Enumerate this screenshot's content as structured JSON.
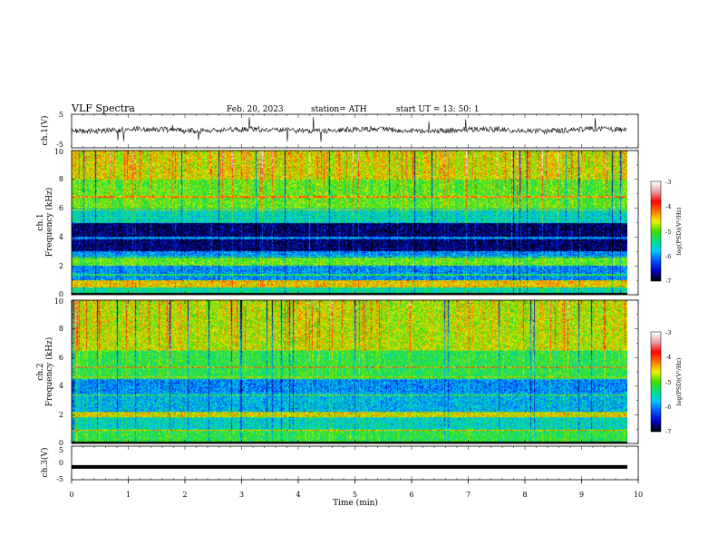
{
  "header": {
    "title": "VLF  Spectra",
    "date": "Feb. 20, 2023",
    "station": "station= ATH",
    "start": "start  UT  =    13: 50: 1"
  },
  "chart_data": [
    {
      "type": "line",
      "panel": "ch1-waveform",
      "ylabel": "ch.1(V)",
      "ylim": [
        -5,
        5
      ],
      "yticks": [
        "5",
        "-5"
      ],
      "xlim": [
        0,
        10
      ],
      "description_values": {
        "baseline_v": 0.3,
        "noise_amplitude_v": 1.0
      }
    },
    {
      "type": "heatmap",
      "panel": "ch1-spectrogram",
      "ylabel": "ch.1\nFrequency (kHz)",
      "ylim": [
        0,
        10
      ],
      "yticks": [
        "0",
        "2",
        "4",
        "6",
        "8",
        "10"
      ],
      "xlim": [
        0,
        9.8
      ],
      "colorbar": {
        "label": "log(PSD)(V²/Hz)",
        "range": [
          -7,
          -3
        ],
        "ticks": [
          "-3",
          "-4",
          "-5",
          "-6",
          "-7"
        ]
      },
      "bands_khz_logpsd": [
        [
          0,
          0.15,
          -7
        ],
        [
          0.15,
          0.5,
          -5.5
        ],
        [
          0.5,
          1.0,
          -4.5
        ],
        [
          1.0,
          2.0,
          -6.0
        ],
        [
          2.0,
          2.6,
          -5.0
        ],
        [
          2.6,
          3.0,
          -6.0
        ],
        [
          3.0,
          5.0,
          -6.8
        ],
        [
          5.0,
          6.0,
          -5.6
        ],
        [
          6.0,
          8.0,
          -5.0
        ],
        [
          8.0,
          10.0,
          -4.6
        ]
      ]
    },
    {
      "type": "heatmap",
      "panel": "ch2-spectrogram",
      "ylabel": "ch.2\nFrequency (kHz)",
      "ylim": [
        0,
        10
      ],
      "yticks": [
        "0",
        "2",
        "4",
        "6",
        "8",
        "10"
      ],
      "xlim": [
        0,
        9.8
      ],
      "colorbar": {
        "label": "log(PSD)(V²/Hz)",
        "range": [
          -7,
          -3
        ],
        "ticks": [
          "-3",
          "-4",
          "-5",
          "-6",
          "-7"
        ]
      },
      "bands_khz_logpsd": [
        [
          0,
          0.15,
          -7
        ],
        [
          0.15,
          1.0,
          -5.2
        ],
        [
          1.0,
          1.8,
          -5.6
        ],
        [
          1.8,
          2.2,
          -4.6
        ],
        [
          2.2,
          3.5,
          -5.8
        ],
        [
          3.5,
          4.5,
          -6.0
        ],
        [
          4.5,
          6.5,
          -5.2
        ],
        [
          6.5,
          10.0,
          -4.7
        ]
      ]
    },
    {
      "type": "line",
      "panel": "ch3-waveform",
      "ylabel": "ch.3(V)",
      "ylim": [
        -5,
        5
      ],
      "yticks": [
        "5",
        "0",
        "-5"
      ],
      "xlim": [
        0,
        10
      ],
      "xlabel": "Time  (min)",
      "xticks": [
        "0",
        "1",
        "2",
        "3",
        "4",
        "5",
        "6",
        "7",
        "8",
        "9",
        "10"
      ],
      "description_values": {
        "baseline_v": -1.2
      }
    }
  ],
  "colors": {
    "colormap": [
      "#000000",
      "#0000c8",
      "#0050ff",
      "#00c8ff",
      "#00e080",
      "#40e000",
      "#f0f000",
      "#ff7800",
      "#ff0000",
      "#e8a0a0",
      "#ffffff"
    ]
  }
}
